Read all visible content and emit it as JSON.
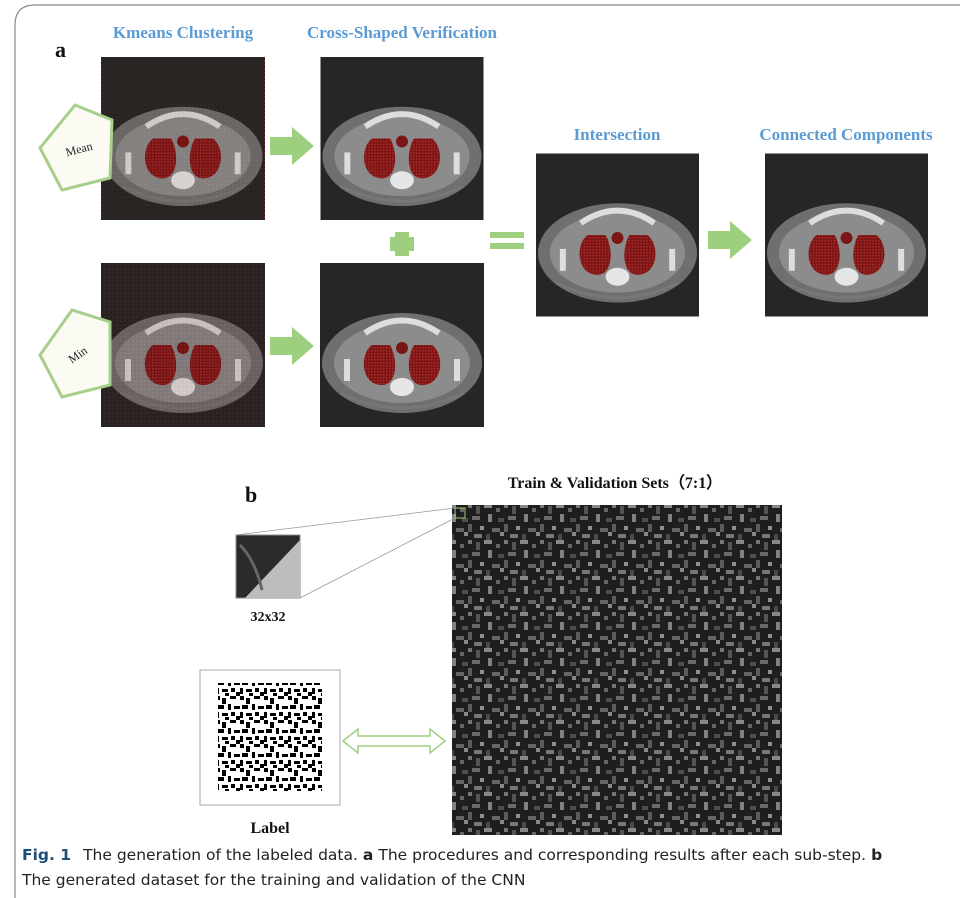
{
  "panel_a": {
    "label": "a",
    "kmeans_title": "Kmeans Clustering",
    "cross_title": "Cross-Shaped Verification",
    "intersection_title": "Intersection",
    "connected_title": "Connected Components",
    "mean_label": "Mean",
    "min_label": "Min"
  },
  "panel_b": {
    "label": "b",
    "sets_title": "Train & Validation Sets（7:1）",
    "patch_size": "32x32",
    "label_title": "Label"
  },
  "caption": {
    "figure": "Fig. 1",
    "text": "The generation of the labeled data.",
    "part_a": "a",
    "text_a": "The procedures and corresponding results after each sub-step.",
    "part_b": "b",
    "text_b": "The generated dataset for the training and validation of the CNN"
  }
}
